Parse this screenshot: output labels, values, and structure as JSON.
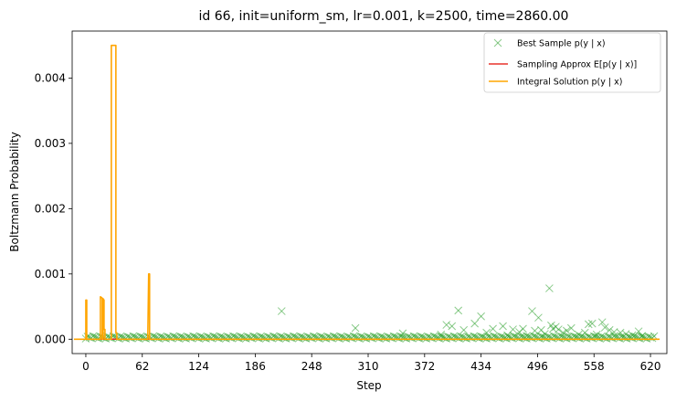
{
  "chart_data": {
    "type": "line",
    "title": "id 66, init=uniform_sm, lr=0.001, k=2500, time=2860.00",
    "xlabel": "Step",
    "ylabel": "Boltzmann Probability",
    "xlim": [
      -15,
      638
    ],
    "ylim": [
      -0.00022,
      0.00472
    ],
    "xticks": [
      0,
      62,
      124,
      186,
      248,
      310,
      372,
      434,
      496,
      558,
      620
    ],
    "yticks": [
      0.0,
      0.001,
      0.002,
      0.003,
      0.004
    ],
    "ytick_labels": [
      "0.000",
      "0.001",
      "0.002",
      "0.003",
      "0.004"
    ],
    "grid": false,
    "legend_position": "upper right",
    "legend": {
      "best": "Best Sample p(y | x)",
      "approx": "Sampling Approx E[p(y | x)]",
      "integral": "Integral Solution p(y | x)"
    },
    "colors": {
      "best": "#2ca02c",
      "approx": "#e8332d",
      "integral": "#ffa500"
    },
    "series": [
      {
        "name": "Integral Solution p(y | x)",
        "style": "line",
        "x": [
          -13,
          0,
          0,
          0.5,
          1,
          1,
          16,
          16,
          17,
          18,
          18,
          19,
          19,
          20,
          20,
          21,
          21,
          28,
          28,
          29,
          33,
          33,
          34,
          34,
          68,
          69,
          70,
          70,
          71,
          71,
          630
        ],
        "y": [
          0.0,
          0.0,
          0.0006,
          0.0006,
          0.0006,
          0.0,
          0.0,
          0.00065,
          0.00064,
          0.00063,
          0.0,
          0.0,
          0.00062,
          0.0006,
          0.00015,
          0.00015,
          0.0,
          0.0,
          0.0045,
          0.0045,
          0.0045,
          0.0001,
          0.0001,
          0.0,
          0.0,
          0.001,
          0.001,
          0.0,
          0.0,
          0.0,
          0.0
        ]
      },
      {
        "name": "Sampling Approx E[p(y | x)]",
        "style": "line",
        "x": [
          -13,
          630
        ],
        "y": [
          0.0,
          0.0
        ]
      },
      {
        "name": "Best Sample p(y | x)",
        "style": "markers-x",
        "x": [
          215,
          296,
          348,
          390,
          396,
          402,
          409,
          415,
          427,
          434,
          440,
          447,
          458,
          463,
          469,
          476,
          480,
          484,
          490,
          493,
          497,
          500,
          504,
          509,
          511,
          513,
          516,
          519,
          524,
          528,
          533,
          541,
          548,
          552,
          556,
          561,
          567,
          570,
          575,
          580,
          587,
          593,
          600,
          607,
          611
        ],
        "y": [
          0.00043,
          0.00017,
          9e-05,
          7e-05,
          0.00022,
          0.0002,
          0.00044,
          0.00014,
          0.00024,
          0.00035,
          0.0001,
          0.00016,
          0.0002,
          6e-05,
          0.00015,
          0.00011,
          0.00016,
          5e-05,
          0.00043,
          0.00013,
          0.00033,
          0.00014,
          8e-05,
          0.00078,
          0.00021,
          0.00016,
          0.00019,
          0.00015,
          0.0001,
          0.00013,
          0.00017,
          7e-05,
          0.0001,
          0.00023,
          0.00024,
          7e-05,
          0.00026,
          0.00018,
          0.00014,
          0.00011,
          0.0001,
          8e-05,
          6e-05,
          0.00012,
          5e-05
        ],
        "baseline_range": [
          0,
          625
        ],
        "baseline_level": 2e-05
      }
    ]
  }
}
